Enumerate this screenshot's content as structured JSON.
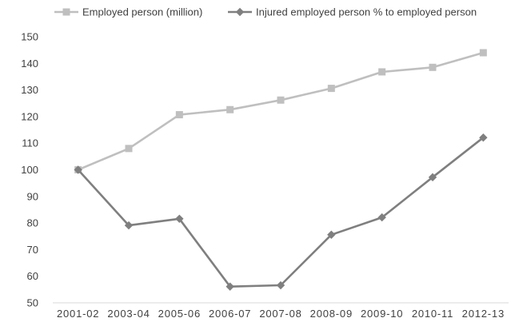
{
  "chart_data": {
    "type": "line",
    "title": "",
    "xlabel": "",
    "ylabel": "",
    "categories": [
      "2001-02",
      "2003-04",
      "2005-06",
      "2006-07",
      "2007-08",
      "2008-09",
      "2009-10",
      "2010-11",
      "2012-13"
    ],
    "ylim": [
      50,
      150
    ],
    "yticks": [
      50,
      60,
      70,
      80,
      90,
      100,
      110,
      120,
      130,
      140,
      150
    ],
    "grid": false,
    "legend_position": "top",
    "series": [
      {
        "name": "Employed person (million)",
        "marker": "square",
        "color": "#bfbfbf",
        "values": [
          100,
          108,
          120.7,
          122.6,
          126.2,
          130.6,
          136.8,
          138.5,
          144
        ]
      },
      {
        "name": "Injured employed person % to employed person",
        "marker": "diamond",
        "color": "#7f7f7f",
        "values": [
          100,
          79.1,
          81.6,
          56.1,
          56.6,
          75.6,
          82.1,
          97.2,
          112.1
        ]
      }
    ]
  }
}
